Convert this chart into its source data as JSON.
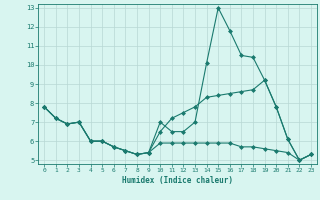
{
  "xlabel": "Humidex (Indice chaleur)",
  "x": [
    0,
    1,
    2,
    3,
    4,
    5,
    6,
    7,
    8,
    9,
    10,
    11,
    12,
    13,
    14,
    15,
    16,
    17,
    18,
    19,
    20,
    21,
    22,
    23
  ],
  "line1": [
    7.8,
    7.2,
    6.9,
    7.0,
    6.0,
    6.0,
    5.7,
    5.5,
    5.3,
    5.4,
    7.0,
    6.5,
    6.5,
    7.0,
    10.1,
    13.0,
    11.8,
    10.5,
    10.4,
    9.2,
    7.8,
    6.1,
    5.0,
    5.3
  ],
  "line2": [
    7.8,
    7.2,
    6.9,
    7.0,
    6.0,
    6.0,
    5.7,
    5.5,
    5.3,
    5.4,
    6.5,
    7.2,
    7.5,
    7.8,
    8.3,
    8.4,
    8.5,
    8.6,
    8.7,
    9.2,
    7.8,
    6.1,
    5.0,
    5.3
  ],
  "line3": [
    7.8,
    7.2,
    6.9,
    7.0,
    6.0,
    6.0,
    5.7,
    5.5,
    5.3,
    5.4,
    5.9,
    5.9,
    5.9,
    5.9,
    5.9,
    5.9,
    5.9,
    5.7,
    5.7,
    5.6,
    5.5,
    5.4,
    5.0,
    5.3
  ],
  "line_color": "#1a7a6e",
  "bg_color": "#d8f5f0",
  "grid_color": "#b8d8d4",
  "ylim": [
    5,
    13
  ],
  "xlim": [
    -0.5,
    23.5
  ],
  "yticks": [
    5,
    6,
    7,
    8,
    9,
    10,
    11,
    12,
    13
  ],
  "xticks": [
    0,
    1,
    2,
    3,
    4,
    5,
    6,
    7,
    8,
    9,
    10,
    11,
    12,
    13,
    14,
    15,
    16,
    17,
    18,
    19,
    20,
    21,
    22,
    23
  ]
}
